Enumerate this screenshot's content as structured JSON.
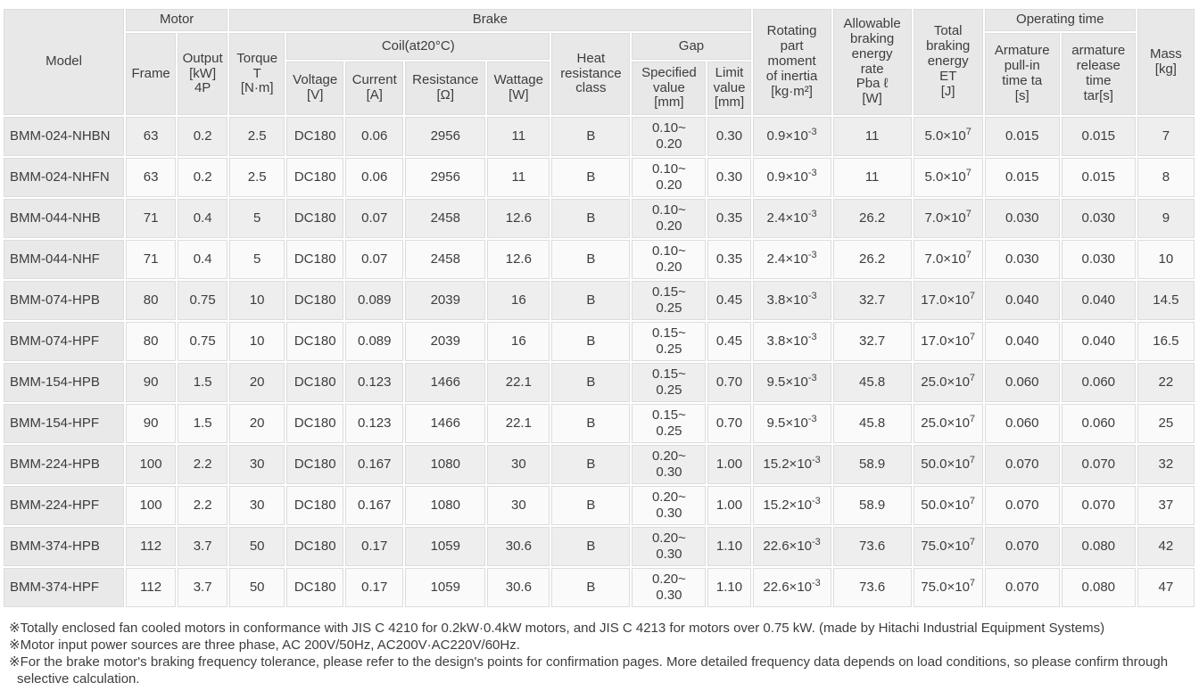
{
  "colors": {
    "page_bg": "#ffffff",
    "header_bg": "#e8e8e8",
    "model_col_bg": "#e9e9e9",
    "row_odd_bg": "#eeeeee",
    "row_even_bg": "#fafafa",
    "cell_border": "#dcdcdc",
    "text": "#3d3d3d"
  },
  "table": {
    "header": {
      "model": "Model",
      "motor": "Motor",
      "brake": "Brake",
      "frame": "Frame",
      "output": "Output\n[kW]\n4P",
      "torque": "Torque\nT\n[N·m]",
      "coil": "Coil(at20°C)",
      "voltage": "Voltage\n[V]",
      "current": "Current\n[A]",
      "resistance": "Resistance\n[Ω]",
      "wattage": "Wattage\n[W]",
      "heat_resistance": "Heat\nresistance\nclass",
      "gap": "Gap",
      "specified_value": "Specified\nvalue\n[mm]",
      "limit_value": "Limit\nvalue\n[mm]",
      "inertia": "Rotating\npart\nmoment\nof inertia\n[kg·m²]",
      "braking_energy_rate": "Allowable\nbraking\nenergy\nrate\nPba ℓ\n[W]",
      "total_braking_energy": "Total\nbraking\nenergy\nET\n[J]",
      "operating_time": "Operating time",
      "pull_in": "Armature\npull-in\ntime ta\n[s]",
      "release": "armature\nrelease\ntime\ntar[s]",
      "mass": "Mass\n[kg]"
    },
    "rows": [
      [
        "BMM-024-NHBN",
        "63",
        "0.2",
        "2.5",
        "DC180",
        "0.06",
        "2956",
        "11",
        "B",
        "0.10~\n0.20",
        "0.30",
        "0.9×10^-3",
        "11",
        "5.0×10^7",
        "0.015",
        "0.015",
        "7"
      ],
      [
        "BMM-024-NHFN",
        "63",
        "0.2",
        "2.5",
        "DC180",
        "0.06",
        "2956",
        "11",
        "B",
        "0.10~\n0.20",
        "0.30",
        "0.9×10^-3",
        "11",
        "5.0×10^7",
        "0.015",
        "0.015",
        "8"
      ],
      [
        "BMM-044-NHB",
        "71",
        "0.4",
        "5",
        "DC180",
        "0.07",
        "2458",
        "12.6",
        "B",
        "0.10~\n0.20",
        "0.35",
        "2.4×10^-3",
        "26.2",
        "7.0×10^7",
        "0.030",
        "0.030",
        "9"
      ],
      [
        "BMM-044-NHF",
        "71",
        "0.4",
        "5",
        "DC180",
        "0.07",
        "2458",
        "12.6",
        "B",
        "0.10~\n0.20",
        "0.35",
        "2.4×10^-3",
        "26.2",
        "7.0×10^7",
        "0.030",
        "0.030",
        "10"
      ],
      [
        "BMM-074-HPB",
        "80",
        "0.75",
        "10",
        "DC180",
        "0.089",
        "2039",
        "16",
        "B",
        "0.15~\n0.25",
        "0.45",
        "3.8×10^-3",
        "32.7",
        "17.0×10^7",
        "0.040",
        "0.040",
        "14.5"
      ],
      [
        "BMM-074-HPF",
        "80",
        "0.75",
        "10",
        "DC180",
        "0.089",
        "2039",
        "16",
        "B",
        "0.15~\n0.25",
        "0.45",
        "3.8×10^-3",
        "32.7",
        "17.0×10^7",
        "0.040",
        "0.040",
        "16.5"
      ],
      [
        "BMM-154-HPB",
        "90",
        "1.5",
        "20",
        "DC180",
        "0.123",
        "1466",
        "22.1",
        "B",
        "0.15~\n0.25",
        "0.70",
        "9.5×10^-3",
        "45.8",
        "25.0×10^7",
        "0.060",
        "0.060",
        "22"
      ],
      [
        "BMM-154-HPF",
        "90",
        "1.5",
        "20",
        "DC180",
        "0.123",
        "1466",
        "22.1",
        "B",
        "0.15~\n0.25",
        "0.70",
        "9.5×10^-3",
        "45.8",
        "25.0×10^7",
        "0.060",
        "0.060",
        "25"
      ],
      [
        "BMM-224-HPB",
        "100",
        "2.2",
        "30",
        "DC180",
        "0.167",
        "1080",
        "30",
        "B",
        "0.20~\n0.30",
        "1.00",
        "15.2×10^-3",
        "58.9",
        "50.0×10^7",
        "0.070",
        "0.070",
        "32"
      ],
      [
        "BMM-224-HPF",
        "100",
        "2.2",
        "30",
        "DC180",
        "0.167",
        "1080",
        "30",
        "B",
        "0.20~\n0.30",
        "1.00",
        "15.2×10^-3",
        "58.9",
        "50.0×10^7",
        "0.070",
        "0.070",
        "37"
      ],
      [
        "BMM-374-HPB",
        "112",
        "3.7",
        "50",
        "DC180",
        "0.17",
        "1059",
        "30.6",
        "B",
        "0.20~\n0.30",
        "1.10",
        "22.6×10^-3",
        "73.6",
        "75.0×10^7",
        "0.070",
        "0.080",
        "42"
      ],
      [
        "BMM-374-HPF",
        "112",
        "3.7",
        "50",
        "DC180",
        "0.17",
        "1059",
        "30.6",
        "B",
        "0.20~\n0.30",
        "1.10",
        "22.6×10^-3",
        "73.6",
        "75.0×10^7",
        "0.070",
        "0.080",
        "47"
      ]
    ]
  },
  "notes": [
    "※Totally enclosed fan cooled motors in conformance with JIS C 4210 for 0.2kW·0.4kW motors, and JIS C 4213 for motors over 0.75 kW. (made by Hitachi Industrial Equipment Systems)",
    "※Motor input power sources are three phase, AC 200V/50Hz, AC200V·AC220V/60Hz.",
    "※For the brake motor's braking frequency tolerance, please refer to the design's points for confirmation pages. More detailed frequency data depends on load conditions, so please confirm through selective calculation."
  ]
}
